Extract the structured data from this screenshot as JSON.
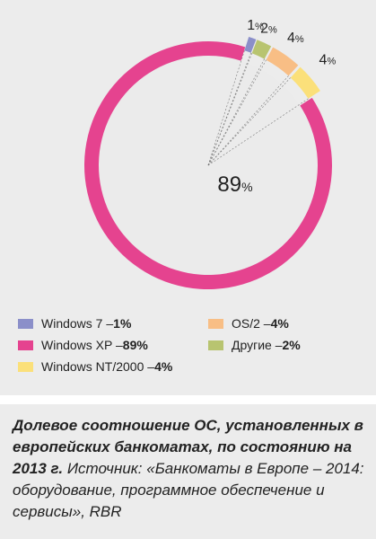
{
  "chart_data": {
    "type": "pie",
    "style": "donut-with-exploded-slices",
    "slices": [
      {
        "label": "Windows 7",
        "value": 1,
        "value_text": "1",
        "unit": "%",
        "color": "#8b8fc9"
      },
      {
        "label": "Windows XP",
        "value": 89,
        "value_text": "89",
        "unit": "%",
        "color": "#e5438f"
      },
      {
        "label": "Windows NT/2000",
        "value": 4,
        "value_text": "4",
        "unit": "%",
        "color": "#fbe07a"
      },
      {
        "label": "OS/2",
        "value": 4,
        "value_text": "4",
        "unit": "%",
        "color": "#f8be85"
      },
      {
        "label": "Другие",
        "value": 2,
        "value_text": "2",
        "unit": "%",
        "color": "#b8c470"
      }
    ],
    "legend": [
      {
        "text": "Windows 7 – ",
        "value": "1%",
        "color": "#8b8fc9"
      },
      {
        "text": "Windows XP – ",
        "value": "89%",
        "color": "#e5438f"
      },
      {
        "text": "Windows NT/2000 – ",
        "value": "4%",
        "color": "#fbe07a"
      },
      {
        "text": "OS/2 – ",
        "value": "4%",
        "color": "#f8be85"
      },
      {
        "text": "Другие – ",
        "value": "2%",
        "color": "#b8c470"
      }
    ]
  },
  "caption": {
    "title": "Долевое соотношение ОС, установленных в европейских банкоматах, по состоянию на 2013 г.",
    "source": " Источник: «Банкоматы в Европе – 2014: оборудование, программное обеспечение и сервисы», RBR"
  }
}
